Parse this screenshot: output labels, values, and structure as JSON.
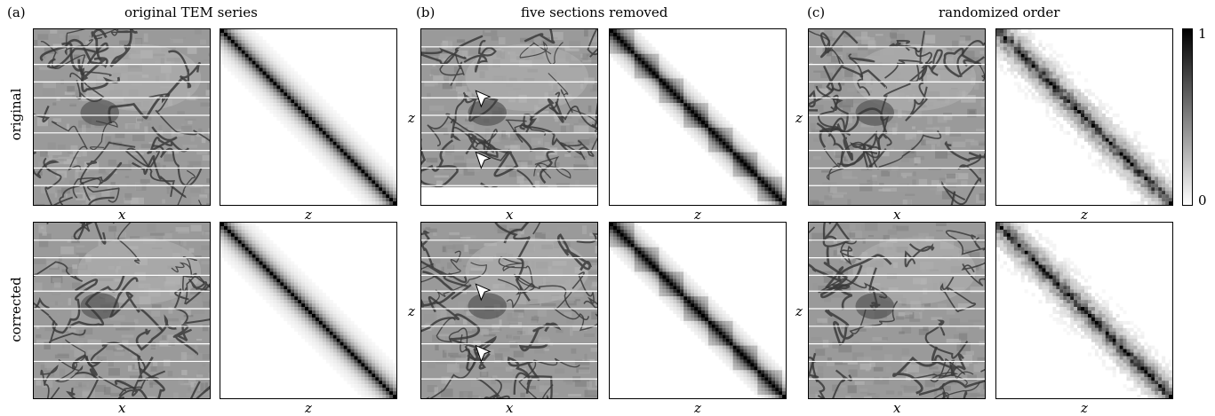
{
  "columns": [
    {
      "letter": "(a)",
      "title": "original TEM series"
    },
    {
      "letter": "(b)",
      "title": "five sections removed"
    },
    {
      "letter": "(c)",
      "title": "randomized order"
    }
  ],
  "rows": [
    {
      "label": "original"
    },
    {
      "label": "corrected"
    }
  ],
  "axes": {
    "image_x": "x",
    "matrix_x": "z",
    "image_y": "z"
  },
  "colorbar": {
    "max_label": "1",
    "min_label": "0"
  },
  "colors": {
    "background": "#ffffff",
    "tem_gray": "#9a9a9a",
    "membrane": "#3a3a3a"
  },
  "icons": [
    "arrowhead-marker-icon"
  ],
  "chart_data": {
    "type": "heatmap",
    "description_note": "",
    "colorbar_range": [
      0,
      1
    ],
    "panels": [
      {
        "column": "(a)",
        "row": "original",
        "kind": "similarity-matrix",
        "pattern": "smooth-diagonal"
      },
      {
        "column": "(a)",
        "row": "corrected",
        "kind": "similarity-matrix",
        "pattern": "smooth-diagonal"
      },
      {
        "column": "(b)",
        "row": "original",
        "kind": "similarity-matrix",
        "pattern": "blocky-diagonal"
      },
      {
        "column": "(b)",
        "row": "corrected",
        "kind": "similarity-matrix",
        "pattern": "blocky-diagonal"
      },
      {
        "column": "(c)",
        "row": "original",
        "kind": "similarity-matrix",
        "pattern": "noisy-diagonal"
      },
      {
        "column": "(c)",
        "row": "corrected",
        "kind": "similarity-matrix",
        "pattern": "noisy-diagonal"
      }
    ]
  }
}
